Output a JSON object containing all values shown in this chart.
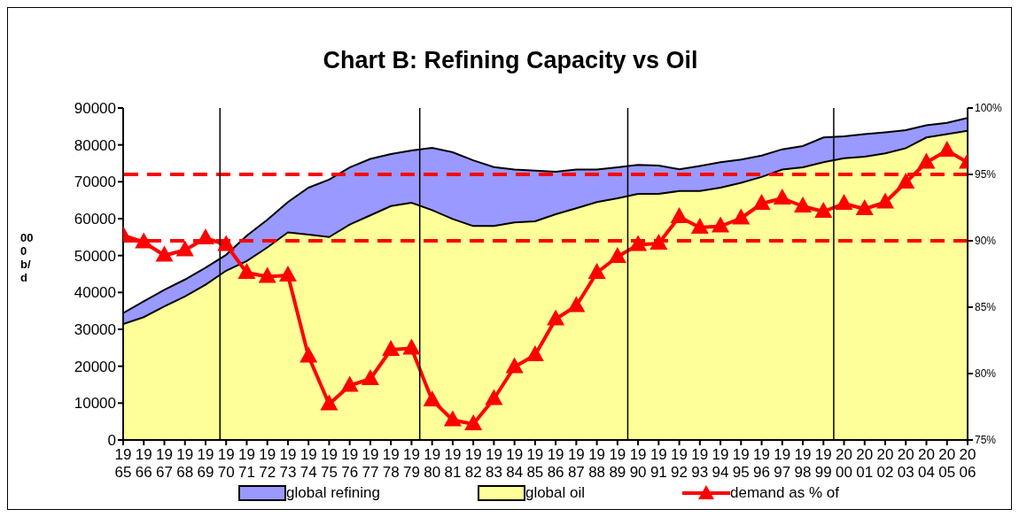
{
  "chart_data": {
    "type": "area",
    "title": "Chart B: Refining Capacity vs Oil",
    "ylabel": "000 b/d",
    "x": [
      1965,
      1966,
      1967,
      1968,
      1969,
      1970,
      1971,
      1972,
      1973,
      1974,
      1975,
      1976,
      1977,
      1978,
      1979,
      1980,
      1981,
      1982,
      1983,
      1984,
      1985,
      1986,
      1987,
      1988,
      1989,
      1990,
      1991,
      1992,
      1993,
      1994,
      1995,
      1996,
      1997,
      1998,
      1999,
      2000,
      2001,
      2002,
      2003,
      2004,
      2005,
      2006
    ],
    "xlim": [
      1965,
      2006
    ],
    "xticks": [
      1965,
      1966,
      1967,
      1968,
      1969,
      1970,
      1971,
      1972,
      1973,
      1974,
      1975,
      1976,
      1977,
      1978,
      1979,
      1980,
      1981,
      1982,
      1983,
      1984,
      1985,
      1986,
      1987,
      1988,
      1989,
      1990,
      1991,
      1992,
      1993,
      1994,
      1995,
      1996,
      1997,
      1998,
      1999,
      2000,
      2001,
      2002,
      2003,
      2004,
      2005,
      2006
    ],
    "ylim": [
      0,
      90000
    ],
    "yticks": [
      0,
      10000,
      20000,
      30000,
      40000,
      50000,
      60000,
      70000,
      80000,
      90000
    ],
    "y2lim": [
      75,
      100
    ],
    "y2ticks": [
      {
        "value": 75,
        "label": "75%"
      },
      {
        "value": 80,
        "label": "80%"
      },
      {
        "value": 85,
        "label": "85%"
      },
      {
        "value": 90,
        "label": "90%"
      },
      {
        "value": 95,
        "label": "95%"
      },
      {
        "value": 100,
        "label": "100%"
      }
    ],
    "series": [
      {
        "name": "global refining",
        "color": "#9999ff",
        "values": [
          34400,
          37600,
          40700,
          43500,
          46700,
          50200,
          55400,
          59700,
          64500,
          68400,
          70600,
          73900,
          76200,
          77500,
          78500,
          79200,
          78000,
          75800,
          74000,
          73300,
          73000,
          72700,
          73300,
          73300,
          73900,
          74600,
          74400,
          73400,
          74300,
          75300,
          76000,
          77100,
          78800,
          79700,
          82000,
          82300,
          82900,
          83400,
          84000,
          85300,
          86000,
          87300
        ]
      },
      {
        "name": "global oil",
        "color": "#ffff99",
        "values": [
          31400,
          33300,
          36200,
          38900,
          42100,
          45900,
          48500,
          52200,
          56300,
          55700,
          55000,
          58400,
          60900,
          63400,
          64300,
          62300,
          59900,
          58000,
          58000,
          59000,
          59300,
          61200,
          62800,
          64500,
          65500,
          66700,
          66700,
          67500,
          67500,
          68400,
          69700,
          71300,
          73300,
          73900,
          75300,
          76400,
          76800,
          77700,
          79100,
          82000,
          82900,
          83800
        ]
      },
      {
        "name": "demand as % of",
        "type": "line",
        "axis": "y2",
        "color": "#ff0000",
        "marker": "triangle",
        "values": [
          90.4,
          89.9,
          88.9,
          89.3,
          90.2,
          89.7,
          87.6,
          87.3,
          87.4,
          81.3,
          77.7,
          79.1,
          79.6,
          81.8,
          81.9,
          78.0,
          76.5,
          76.2,
          78.1,
          80.5,
          81.4,
          84.1,
          85.1,
          87.6,
          88.8,
          89.7,
          89.8,
          91.8,
          91.0,
          91.1,
          91.7,
          92.8,
          93.2,
          92.6,
          92.2,
          92.8,
          92.4,
          92.9,
          94.4,
          95.9,
          96.8,
          95.9
        ]
      }
    ],
    "ref_lines": [
      {
        "axis": "y2",
        "value": 95,
        "color": "#ff0000",
        "line_style": "dashed"
      },
      {
        "axis": "y2",
        "value": 90,
        "color": "#ff0000",
        "line_style": "dashed"
      },
      {
        "axis": "x",
        "value": 1969.7,
        "color": "#000000",
        "line_style": "solid"
      },
      {
        "axis": "x",
        "value": 1979.4,
        "color": "#000000",
        "line_style": "solid"
      },
      {
        "axis": "x",
        "value": 1989.5,
        "color": "#000000",
        "line_style": "solid"
      },
      {
        "axis": "x",
        "value": 1999.5,
        "color": "#000000",
        "line_style": "solid"
      }
    ],
    "legend": "bottom"
  }
}
